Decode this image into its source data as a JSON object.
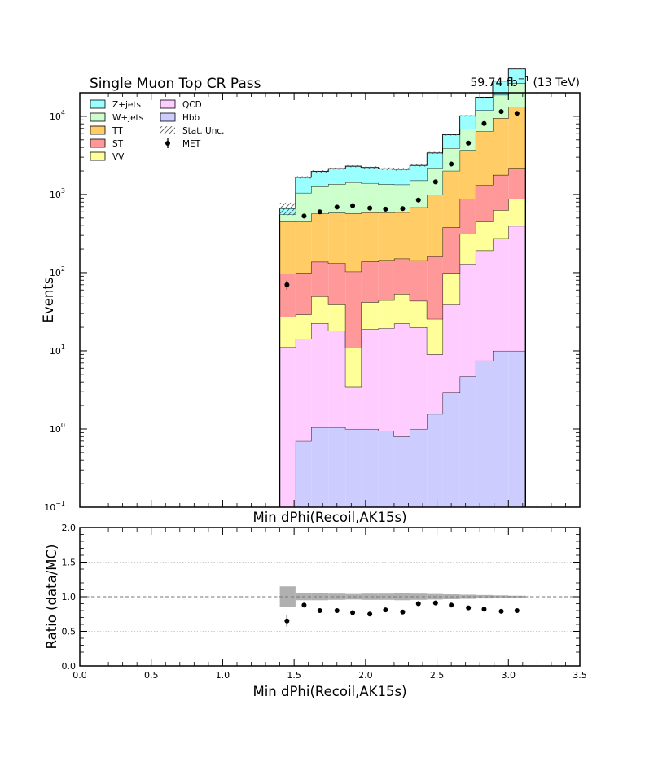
{
  "chart_data": [
    {
      "type": "stacked-histogram",
      "title": "Single Muon Top CR Pass",
      "lumi_label": "59.74 fb",
      "lumi_exponent": "−1",
      "energy_label": "(13 TeV)",
      "xlabel": "Min dPhi(Recoil,AK15s)",
      "ylabel": "Events",
      "xlim": [
        0,
        3.5
      ],
      "ylim": [
        0.1,
        20000
      ],
      "yscale": "log",
      "y_ticks": [
        {
          "value": 0.1,
          "base": "10",
          "exp": "−1"
        },
        {
          "value": 1,
          "base": "10",
          "exp": "0"
        },
        {
          "value": 10,
          "base": "10",
          "exp": "1"
        },
        {
          "value": 100,
          "base": "10",
          "exp": "2"
        },
        {
          "value": 1000,
          "base": "10",
          "exp": "3"
        },
        {
          "value": 10000,
          "base": "10",
          "exp": "4"
        }
      ],
      "bin_edges": [
        1.4,
        1.51,
        1.62,
        1.74,
        1.86,
        1.97,
        2.09,
        2.2,
        2.31,
        2.43,
        2.54,
        2.66,
        2.77,
        2.89,
        3.0,
        3.12
      ],
      "stack_order": [
        "Hbb",
        "QCD",
        "VV",
        "ST",
        "TT",
        "W+jets",
        "Z+jets"
      ],
      "series": [
        {
          "name": "Hbb",
          "color": "#ccccff",
          "values": [
            0.1,
            0.7,
            1.05,
            1.05,
            1.0,
            1.0,
            0.95,
            0.8,
            1.0,
            1.55,
            2.9,
            4.7,
            7.5,
            10.0,
            10.0
          ]
        },
        {
          "name": "QCD",
          "color": "#ffccff",
          "values": [
            11,
            13.5,
            21.5,
            17,
            2.5,
            18,
            18.5,
            21.5,
            19,
            7.5,
            36,
            125,
            185,
            265,
            385
          ]
        },
        {
          "name": "VV",
          "color": "#ffff99",
          "values": [
            16,
            15,
            27,
            21,
            7.5,
            23,
            25,
            31,
            23.5,
            16.5,
            60,
            185,
            255,
            355,
            480
          ]
        },
        {
          "name": "ST",
          "color": "#ff9999",
          "values": [
            70,
            70,
            88,
            93,
            92,
            96,
            100,
            98,
            100,
            135,
            280,
            570,
            880,
            1150,
            1300
          ]
        },
        {
          "name": "TT",
          "color": "#ffcc66",
          "values": [
            350,
            350,
            430,
            450,
            470,
            450,
            440,
            440,
            540,
            830,
            1630,
            2800,
            5100,
            7700,
            11000
          ]
        },
        {
          "name": "W+jets",
          "color": "#ccffcc",
          "values": [
            108,
            600,
            700,
            780,
            860,
            810,
            770,
            750,
            830,
            1200,
            1900,
            3200,
            5500,
            9300,
            13500
          ]
        },
        {
          "name": "Z+jets",
          "color": "#99ffff",
          "values": [
            108,
            605,
            705,
            785,
            870,
            820,
            780,
            760,
            845,
            1215,
            1925,
            3250,
            5600,
            9450,
            13700
          ]
        }
      ],
      "data_series": {
        "name": "MET",
        "x": [
          1.45,
          1.57,
          1.68,
          1.8,
          1.91,
          2.03,
          2.14,
          2.26,
          2.37,
          2.49,
          2.6,
          2.72,
          2.83,
          2.95,
          3.06
        ],
        "y": [
          70,
          530,
          600,
          690,
          720,
          670,
          650,
          660,
          850,
          1450,
          2450,
          4550,
          8100,
          11500,
          10900
        ],
        "yerr": [
          9,
          23,
          25,
          26,
          27,
          26,
          25,
          26,
          29,
          38,
          50,
          67,
          90,
          107,
          104
        ]
      },
      "stat_unc_name": "Stat. Unc.",
      "stat_unc_frac": [
        0.18,
        0.035,
        0.035,
        0.03,
        0.03,
        0.035,
        0.035,
        0.04,
        0.035,
        0.03,
        0.025,
        0.02,
        0.015,
        0.012,
        0.01
      ],
      "legend": {
        "position": "top-left",
        "columns": [
          [
            "Z+jets",
            "W+jets",
            "TT",
            "ST",
            "VV"
          ],
          [
            "QCD",
            "Hbb",
            "Stat. Unc.",
            "MET"
          ]
        ]
      }
    },
    {
      "type": "scatter",
      "xlabel": "Min dPhi(Recoil,AK15s)",
      "ylabel": "Ratio (data/MC)",
      "xlim": [
        0,
        3.5
      ],
      "ylim": [
        0,
        2
      ],
      "x_ticks": [
        "0.0",
        "0.5",
        "1.0",
        "1.5",
        "2.0",
        "2.5",
        "3.0",
        "3.5"
      ],
      "y_ticks": [
        "0.0",
        "0.5",
        "1.0",
        "1.5",
        "2.0"
      ],
      "grid": true,
      "reference_line": 1.0,
      "x": [
        1.45,
        1.57,
        1.68,
        1.8,
        1.91,
        2.03,
        2.14,
        2.26,
        2.37,
        2.49,
        2.6,
        2.72,
        2.83,
        2.95,
        3.06
      ],
      "y": [
        0.65,
        0.88,
        0.8,
        0.8,
        0.77,
        0.75,
        0.81,
        0.78,
        0.9,
        0.91,
        0.88,
        0.84,
        0.82,
        0.79,
        0.8
      ],
      "yerr": [
        0.08,
        0.02,
        0.02,
        0.02,
        0.02,
        0.02,
        0.02,
        0.02,
        0.02,
        0.02,
        0.015,
        0.012,
        0.01,
        0.01,
        0.01
      ],
      "unc_band": [
        0.15,
        0.05,
        0.05,
        0.045,
        0.04,
        0.045,
        0.045,
        0.05,
        0.045,
        0.04,
        0.035,
        0.03,
        0.025,
        0.02,
        0.015
      ]
    }
  ]
}
